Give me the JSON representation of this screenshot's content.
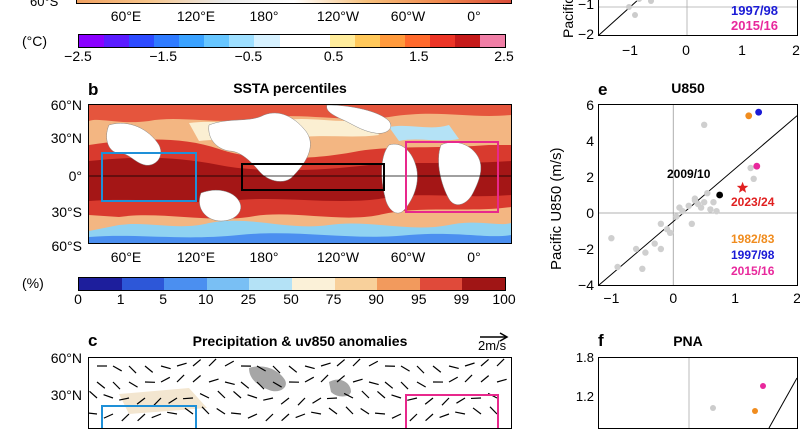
{
  "panel_a": {
    "lat_label_cut": "60°S",
    "lon_labels": [
      "60°E",
      "120°E",
      "180°",
      "120°W",
      "60°W",
      "0°"
    ],
    "units": "(°C)",
    "colorbar_labels": [
      "−2.5",
      "−1.5",
      "−0.5",
      "0.5",
      "1.5",
      "2.5"
    ],
    "colorbar_colors": [
      "#8a00ff",
      "#5a1cff",
      "#2d4bff",
      "#2f7bff",
      "#3aa2ff",
      "#67c6ff",
      "#9edfff",
      "#d6f1ff",
      "#ffffff",
      "#ffffff",
      "#ffec9c",
      "#ffc85a",
      "#ff9a3c",
      "#ff6a2c",
      "#ec3527",
      "#c51a1a",
      "#f07ea6"
    ]
  },
  "panel_b": {
    "letter": "b",
    "title": "SSTA percentiles",
    "lat_labels": [
      "60°N",
      "30°N",
      "0°",
      "30°S",
      "60°S"
    ],
    "lon_labels": [
      "60°E",
      "120°E",
      "180°",
      "120°W",
      "60°W",
      "0°"
    ],
    "units": "(%)",
    "colorbar_labels": [
      "0",
      "1",
      "5",
      "10",
      "25",
      "50",
      "75",
      "90",
      "95",
      "99",
      "100"
    ],
    "colorbar_colors": [
      "#1d1e9c",
      "#2d57d8",
      "#4b8ff0",
      "#79bff4",
      "#b4e2f6",
      "#fbf1d8",
      "#f8d09b",
      "#f29a5d",
      "#e04a3a",
      "#a01515"
    ],
    "box_colors": {
      "indian": "#1e90d8",
      "pacific": "#000000",
      "atlantic": "#e8288c"
    }
  },
  "panel_c": {
    "letter": "c",
    "title": "Precipitation & uv850 anomalies",
    "ref_vector": "2m/s",
    "lat_labels": [
      "60°N",
      "30°N"
    ]
  },
  "panel_d": {
    "ylabel_cut": "Pacific",
    "y_ticks": [
      "−1",
      "−2"
    ],
    "x_ticks": [
      "−1",
      "0",
      "1",
      "2"
    ],
    "legend": [
      {
        "label": "1997/98",
        "color": "#1a1ad6"
      },
      {
        "label": "2015/16",
        "color": "#e8289c"
      }
    ]
  },
  "panel_e": {
    "letter": "e",
    "title": "U850",
    "ylabel": "Pacific U850 (m/s)",
    "annotations": [
      {
        "label": "2009/10",
        "color": "#000000"
      },
      {
        "label": "2023/24",
        "color": "#e02020"
      }
    ],
    "legend": [
      {
        "label": "1982/83",
        "color": "#f08c1e"
      },
      {
        "label": "1997/98",
        "color": "#1a1ad6"
      },
      {
        "label": "2015/16",
        "color": "#e8289c"
      }
    ],
    "chart_data": {
      "type": "scatter",
      "x_ticks": [
        "−1",
        "0",
        "1",
        "2"
      ],
      "y_ticks": [
        "6",
        "4",
        "2",
        "0",
        "−2",
        "−4"
      ],
      "xlim": [
        -1.2,
        2
      ],
      "ylim": [
        -4,
        6
      ],
      "fit_line": [
        [
          -1.2,
          -4.0
        ],
        [
          2.0,
          5.4
        ]
      ],
      "grey_points": [
        [
          -1.0,
          -1.4
        ],
        [
          -0.9,
          -3.0
        ],
        [
          -0.6,
          -2.0
        ],
        [
          -0.5,
          -3.1
        ],
        [
          -0.45,
          -2.2
        ],
        [
          -0.3,
          -1.7
        ],
        [
          -0.2,
          -2.0
        ],
        [
          -0.2,
          -0.6
        ],
        [
          -0.1,
          -0.9
        ],
        [
          -0.05,
          -1.1
        ],
        [
          0.05,
          -0.2
        ],
        [
          0.1,
          0.3
        ],
        [
          0.15,
          0.1
        ],
        [
          0.25,
          0.4
        ],
        [
          0.3,
          -0.6
        ],
        [
          0.35,
          0.8
        ],
        [
          0.4,
          0.5
        ],
        [
          0.45,
          0.3
        ],
        [
          0.5,
          0.6
        ],
        [
          0.55,
          1.1
        ],
        [
          0.6,
          0.2
        ],
        [
          0.65,
          0.6
        ],
        [
          0.7,
          0.1
        ],
        [
          0.35,
          0.7
        ],
        [
          1.25,
          2.5
        ],
        [
          1.3,
          1.9
        ],
        [
          0.5,
          4.9
        ]
      ],
      "highlighted_points": [
        {
          "label": "2009/10",
          "x": 0.75,
          "y": 1.0,
          "color": "#000000",
          "marker": "circle"
        },
        {
          "label": "2023/24",
          "x": 1.12,
          "y": 1.4,
          "color": "#e02020",
          "marker": "star"
        },
        {
          "label": "1982/83",
          "x": 1.22,
          "y": 5.4,
          "color": "#f08c1e",
          "marker": "circle"
        },
        {
          "label": "1997/98",
          "x": 1.38,
          "y": 5.6,
          "color": "#1a1ad6",
          "marker": "circle"
        },
        {
          "label": "2015/16",
          "x": 1.35,
          "y": 2.6,
          "color": "#e8289c",
          "marker": "circle"
        }
      ]
    }
  },
  "panel_f": {
    "letter": "f",
    "title": "PNA",
    "y_ticks": [
      "1.8",
      "1.2"
    ]
  }
}
